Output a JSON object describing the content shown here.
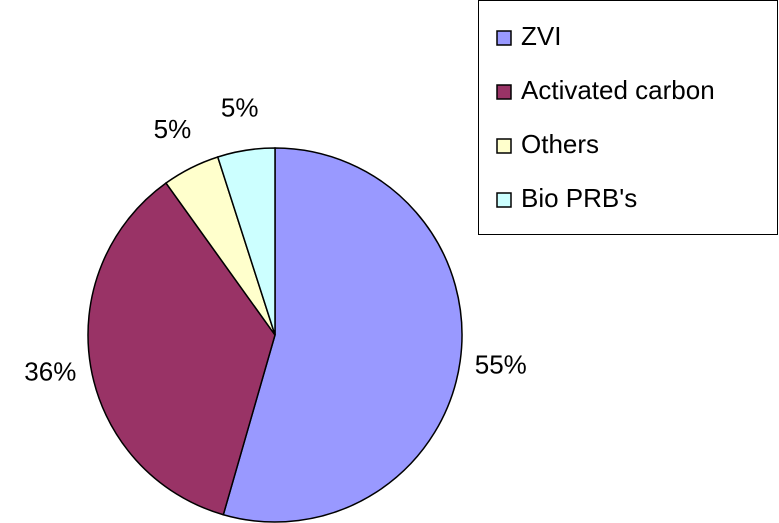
{
  "chart_data": {
    "type": "pie",
    "categories": [
      "ZVI",
      "Activated carbon",
      "Others",
      "Bio PRB's"
    ],
    "values": [
      55,
      36,
      5,
      5
    ],
    "value_labels": [
      "55%",
      "36%",
      "5%",
      "5%"
    ],
    "colors": [
      "#9999ff",
      "#993366",
      "#ffffcc",
      "#ccffff"
    ],
    "legend": "top-right"
  }
}
